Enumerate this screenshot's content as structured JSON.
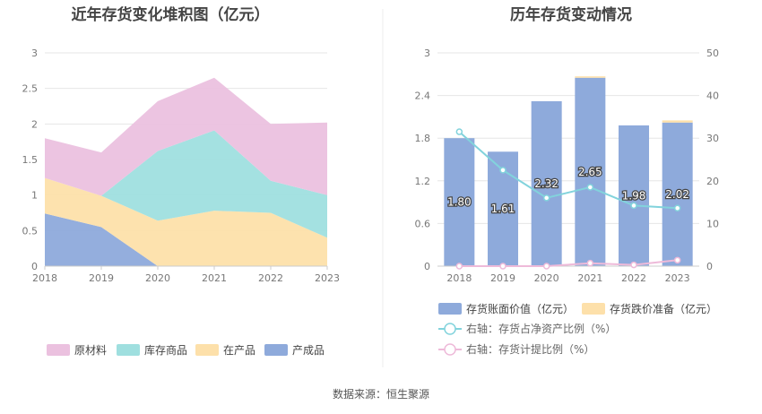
{
  "source_text": "数据来源：恒生聚源",
  "chart_data": [
    {
      "type": "area",
      "stacked": true,
      "title": "近年存货变化堆积图（亿元）",
      "categories": [
        "2018",
        "2019",
        "2020",
        "2021",
        "2022",
        "2023"
      ],
      "y_ticks": [
        "0",
        "0.5",
        "1",
        "1.5",
        "2",
        "2.5",
        "3"
      ],
      "ylim": [
        0,
        3
      ],
      "grid": true,
      "legend_position": "bottom",
      "series": [
        {
          "name": "产成品",
          "color": "#8eaadb",
          "values": [
            0.74,
            0.55,
            0.0,
            0.0,
            0.0,
            0.0
          ]
        },
        {
          "name": "在产品",
          "color": "#fde0aa",
          "values": [
            0.5,
            0.44,
            0.64,
            0.78,
            0.75,
            0.4
          ]
        },
        {
          "name": "库存商品",
          "color": "#9fdfdf",
          "values": [
            0.0,
            0.0,
            0.98,
            1.13,
            0.45,
            0.6
          ]
        },
        {
          "name": "原材料",
          "color": "#ebc1df",
          "values": [
            0.56,
            0.61,
            0.7,
            0.74,
            0.8,
            1.02
          ]
        }
      ],
      "legend_order": [
        "原材料",
        "库存商品",
        "在产品",
        "产成品"
      ]
    },
    {
      "type": "bar",
      "title": "历年存货变动情况",
      "categories": [
        "2018",
        "2019",
        "2020",
        "2021",
        "2022",
        "2023"
      ],
      "y_left_ticks": [
        "0",
        "0.6",
        "1.2",
        "1.8",
        "2.4",
        "3"
      ],
      "y_right_ticks": [
        "0",
        "10",
        "20",
        "30",
        "40",
        "50"
      ],
      "ylim_left": [
        0,
        3
      ],
      "ylim_right": [
        0,
        50
      ],
      "grid": true,
      "legend_position": "bottom",
      "bar_series": [
        {
          "name": "存货账面价值（亿元）",
          "color": "#8eaadb",
          "values": [
            1.8,
            1.61,
            2.32,
            2.65,
            1.98,
            2.02
          ],
          "labels": [
            "1.80",
            "1.61",
            "2.32",
            "2.65",
            "1.98",
            "2.02"
          ]
        },
        {
          "name": "存货跌价准备（亿元）",
          "color": "#fde0aa",
          "values": [
            0.0,
            0.0,
            0.0,
            0.02,
            0.0,
            0.03
          ]
        }
      ],
      "line_series": [
        {
          "name": "右轴：存货占净资产比例（%）",
          "color": "#82d3dc",
          "axis": "right",
          "values": [
            31.5,
            22.5,
            16.0,
            18.5,
            14.2,
            13.6
          ]
        },
        {
          "name": "右轴：存货计提比例（%）",
          "color": "#eebad9",
          "axis": "right",
          "values": [
            0.0,
            0.0,
            0.0,
            0.7,
            0.3,
            1.4
          ]
        }
      ]
    }
  ]
}
